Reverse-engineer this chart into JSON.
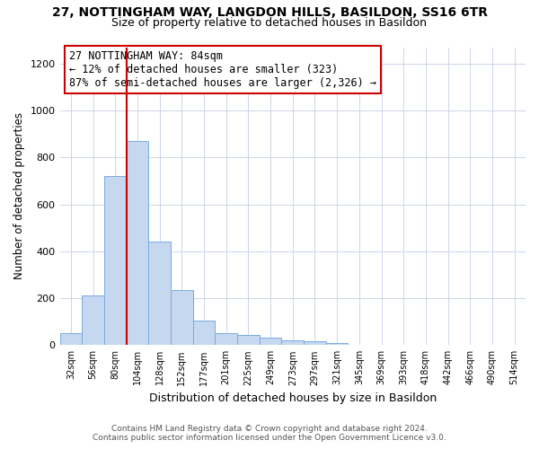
{
  "title_line1": "27, NOTTINGHAM WAY, LANGDON HILLS, BASILDON, SS16 6TR",
  "title_line2": "Size of property relative to detached houses in Basildon",
  "xlabel": "Distribution of detached houses by size in Basildon",
  "ylabel": "Number of detached properties",
  "bar_labels": [
    "32sqm",
    "56sqm",
    "80sqm",
    "104sqm",
    "128sqm",
    "152sqm",
    "177sqm",
    "201sqm",
    "225sqm",
    "249sqm",
    "273sqm",
    "297sqm",
    "321sqm",
    "345sqm",
    "369sqm",
    "393sqm",
    "418sqm",
    "442sqm",
    "466sqm",
    "490sqm",
    "514sqm"
  ],
  "bar_values": [
    50,
    210,
    720,
    870,
    440,
    235,
    105,
    50,
    45,
    32,
    20,
    15,
    10,
    0,
    0,
    0,
    0,
    0,
    0,
    0,
    0
  ],
  "bar_color": "#c5d8f0",
  "bar_edge_color": "#7aabe0",
  "vline_color": "#cc0000",
  "annotation_text": "27 NOTTINGHAM WAY: 84sqm\n← 12% of detached houses are smaller (323)\n87% of semi-detached houses are larger (2,326) →",
  "annotation_box_color": "#ffffff",
  "annotation_box_edge": "#cc0000",
  "ylim": [
    0,
    1270
  ],
  "yticks": [
    0,
    200,
    400,
    600,
    800,
    1000,
    1200
  ],
  "footer_line1": "Contains HM Land Registry data © Crown copyright and database right 2024.",
  "footer_line2": "Contains public sector information licensed under the Open Government Licence v3.0.",
  "background_color": "#ffffff",
  "grid_color": "#ccd6e8"
}
